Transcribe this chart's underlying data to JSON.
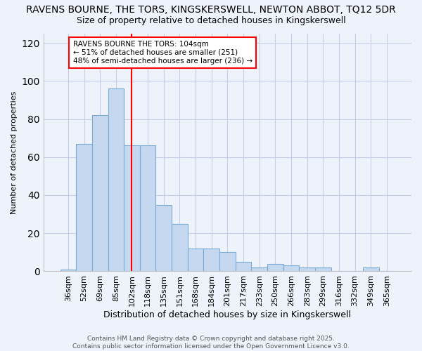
{
  "title": "RAVENS BOURNE, THE TORS, KINGSKERSWELL, NEWTON ABBOT, TQ12 5DR",
  "subtitle": "Size of property relative to detached houses in Kingskerswell",
  "xlabel": "Distribution of detached houses by size in Kingskerswell",
  "ylabel": "Number of detached properties",
  "categories": [
    "36sqm",
    "52sqm",
    "69sqm",
    "85sqm",
    "102sqm",
    "118sqm",
    "135sqm",
    "151sqm",
    "168sqm",
    "184sqm",
    "201sqm",
    "217sqm",
    "233sqm",
    "250sqm",
    "266sqm",
    "283sqm",
    "299sqm",
    "316sqm",
    "332sqm",
    "349sqm",
    "365sqm"
  ],
  "values": [
    1,
    67,
    82,
    96,
    66,
    66,
    35,
    25,
    12,
    12,
    10,
    5,
    2,
    4,
    3,
    2,
    2,
    0,
    0,
    2,
    0
  ],
  "bar_color": "#c5d8f0",
  "bar_edge_color": "#7aabd4",
  "red_line_x": 4.5,
  "red_line_label": "RAVENS BOURNE THE TORS: 104sqm",
  "annotation_line1": "← 51% of detached houses are smaller (251)",
  "annotation_line2": "48% of semi-detached houses are larger (236) →",
  "ylim": [
    0,
    125
  ],
  "yticks": [
    0,
    20,
    40,
    60,
    80,
    100,
    120
  ],
  "footer": "Contains HM Land Registry data © Crown copyright and database right 2025.\nContains public sector information licensed under the Open Government Licence v3.0.",
  "bg_color": "#eef2fb",
  "plot_bg_color": "#eef2fb",
  "grid_color": "#c5cfe8",
  "title_fontsize": 10,
  "subtitle_fontsize": 9,
  "xlabel_fontsize": 9,
  "ylabel_fontsize": 8,
  "tick_fontsize": 8
}
